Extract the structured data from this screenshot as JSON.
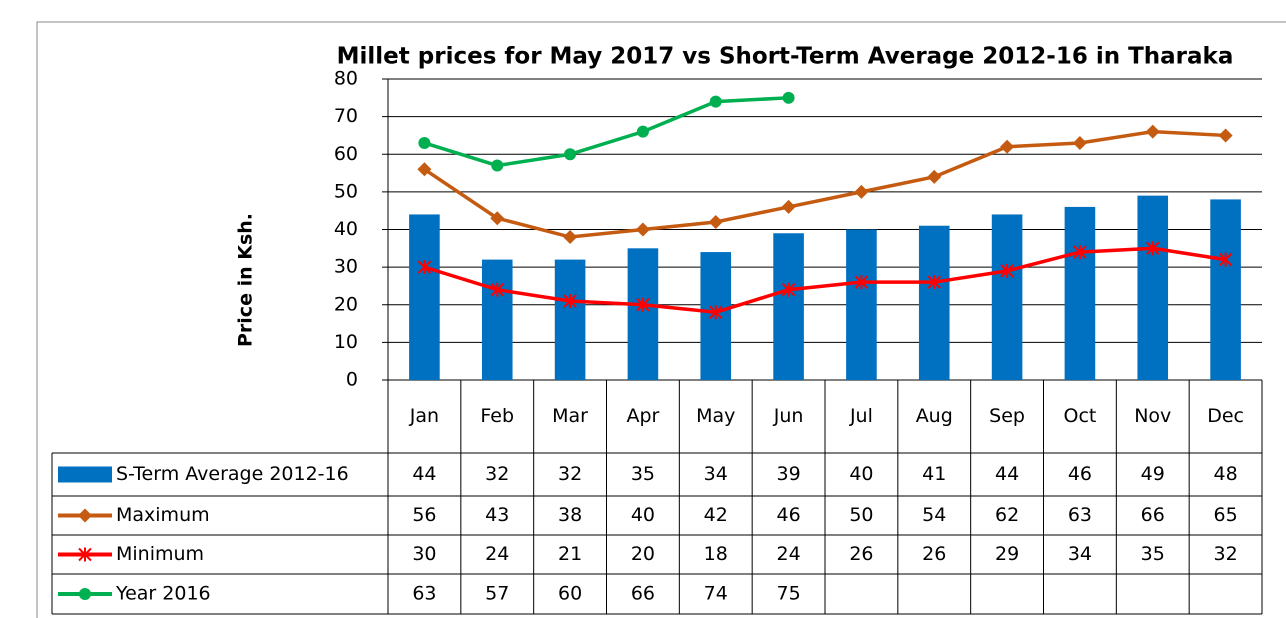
{
  "chart_data": {
    "type": "bar-line-table",
    "title": "Millet prices for May 2017 vs Short-Term Average 2012-16 in Tharaka",
    "y_label": "Price in Ksh.",
    "categories": [
      "Jan",
      "Feb",
      "Mar",
      "Apr",
      "May",
      "Jun",
      "Jul",
      "Aug",
      "Sep",
      "Oct",
      "Nov",
      "Dec"
    ],
    "ylim": [
      0,
      80
    ],
    "yticks": [
      0,
      10,
      20,
      30,
      40,
      50,
      60,
      70,
      80
    ],
    "grid": true,
    "series": [
      {
        "name": "S-Term Average 2012-16",
        "type": "bar",
        "color": "#0070c0",
        "values": [
          44,
          32,
          32,
          35,
          34,
          39,
          40,
          41,
          44,
          46,
          49,
          48
        ]
      },
      {
        "name": "Maximum",
        "type": "line",
        "marker": "diamond",
        "color": "#c55a11",
        "values": [
          56,
          43,
          38,
          40,
          42,
          46,
          50,
          54,
          62,
          63,
          66,
          65
        ]
      },
      {
        "name": "Minimum",
        "type": "line",
        "marker": "star",
        "color": "#ff0000",
        "values": [
          30,
          24,
          21,
          20,
          18,
          24,
          26,
          26,
          29,
          34,
          35,
          32
        ]
      },
      {
        "name": "Year 2016",
        "type": "line",
        "marker": "circle",
        "color": "#00b050",
        "values": [
          63,
          57,
          60,
          66,
          74,
          75,
          null,
          null,
          null,
          null,
          null,
          null
        ]
      }
    ]
  }
}
